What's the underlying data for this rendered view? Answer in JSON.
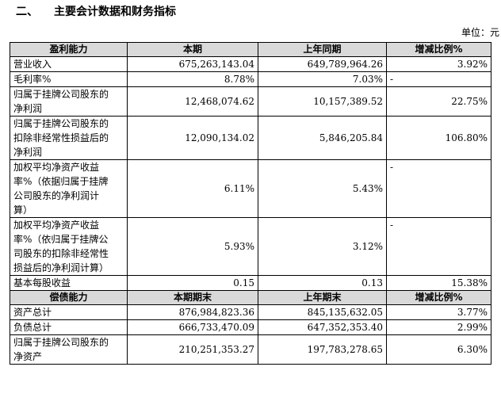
{
  "section": {
    "number": "二、",
    "title": "主要会计数据和财务指标"
  },
  "unit_label": "单位：元",
  "profitability": {
    "headers": [
      "盈利能力",
      "本期",
      "上年同期",
      "增减比例%"
    ],
    "rows": [
      {
        "label": "营业收入",
        "current": "675,263,143.04",
        "previous": "649,789,964.26",
        "change": "3.92%"
      },
      {
        "label": "毛利率%",
        "current": "8.78%",
        "previous": "7.03%",
        "change": "-"
      },
      {
        "label": "归属于挂牌公司股东的\n净利润",
        "current": "12,468,074.62",
        "previous": "10,157,389.52",
        "change": "22.75%"
      },
      {
        "label": "归属于挂牌公司股东的\n扣除非经常性损益后的\n净利润",
        "current": "12,090,134.02",
        "previous": "5,846,205.84",
        "change": "106.80%"
      },
      {
        "label": "加权平均净资产收益\n率%（依据归属于挂牌\n公司股东的净利润计\n算）",
        "current": "6.11%",
        "previous": "5.43%",
        "change": "-"
      },
      {
        "label": "加权平均净资产收益\n率%（依归属于挂牌公\n司股东的扣除非经常性\n损益后的净利润计算）",
        "current": "5.93%",
        "previous": "3.12%",
        "change": "-"
      },
      {
        "label": "基本每股收益",
        "current": "0.15",
        "previous": "0.13",
        "change": "15.38%"
      }
    ]
  },
  "solvency": {
    "headers": [
      "偿债能力",
      "本期期末",
      "上年期末",
      "增减比例%"
    ],
    "rows": [
      {
        "label": "资产总计",
        "current": "876,984,823.36",
        "previous": "845,135,632.05",
        "change": "3.77%"
      },
      {
        "label": "负债总计",
        "current": "666,733,470.09",
        "previous": "647,352,353.40",
        "change": "2.99%"
      },
      {
        "label": "归属于挂牌公司股东的\n净资产",
        "current": "210,251,353.27",
        "previous": "197,783,278.65",
        "change": "6.30%"
      }
    ]
  }
}
